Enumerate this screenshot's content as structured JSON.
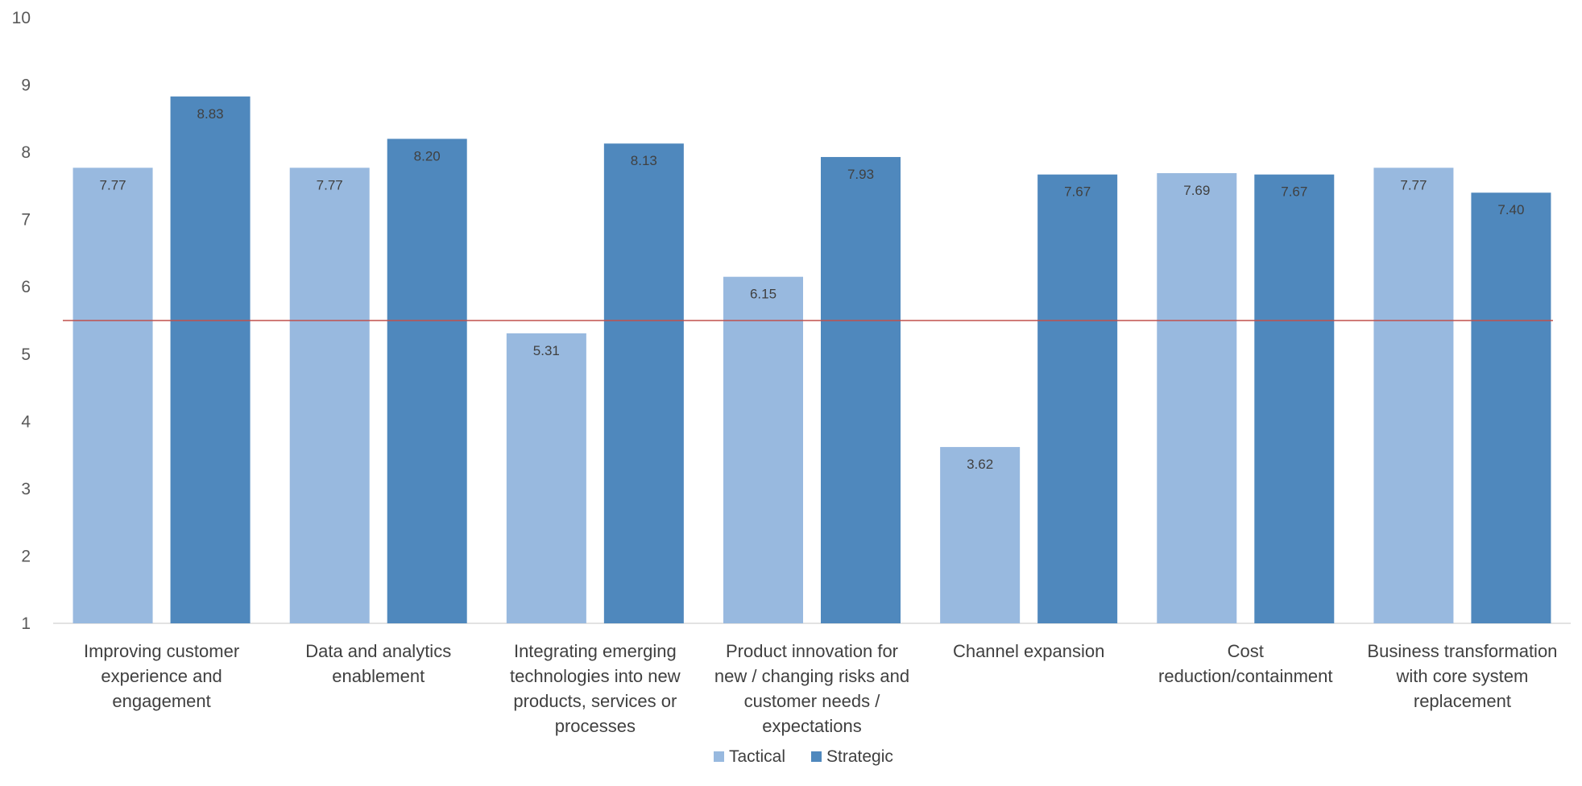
{
  "chart_data": {
    "type": "bar",
    "categories": [
      [
        "Improving customer",
        "experience and",
        "engagement"
      ],
      [
        "Data and analytics",
        "enablement"
      ],
      [
        "Integrating emerging",
        "technologies into new",
        "products, services or",
        "processes"
      ],
      [
        "Product innovation for",
        "new / changing risks and",
        "customer needs /",
        "expectations"
      ],
      [
        "Channel expansion"
      ],
      [
        "Cost",
        "reduction/containment"
      ],
      [
        "Business transformation",
        "with core system",
        "replacement"
      ]
    ],
    "series": [
      {
        "name": "Tactical",
        "color": "#98b9df",
        "values": [
          7.77,
          7.77,
          5.31,
          6.15,
          3.62,
          7.69,
          7.77
        ],
        "labels": [
          "7.77",
          "7.77",
          "5.31",
          "6.15",
          "3.62",
          "7.69",
          "7.77"
        ]
      },
      {
        "name": "Strategic",
        "color": "#4f88bd",
        "values": [
          8.83,
          8.2,
          8.13,
          7.93,
          7.67,
          7.67,
          7.4
        ],
        "labels": [
          "8.83",
          "8.20",
          "8.13",
          "7.93",
          "7.67",
          "7.67",
          "7.40"
        ]
      }
    ],
    "ylim": [
      1,
      10
    ],
    "yticks": [
      "1",
      "2",
      "3",
      "4",
      "5",
      "6",
      "7",
      "8",
      "9",
      "10"
    ],
    "reference_line": {
      "value": 5.5,
      "color": "#c0504d"
    },
    "grid": false,
    "legend_position": "bottom",
    "title": "",
    "xlabel": "",
    "ylabel": ""
  }
}
